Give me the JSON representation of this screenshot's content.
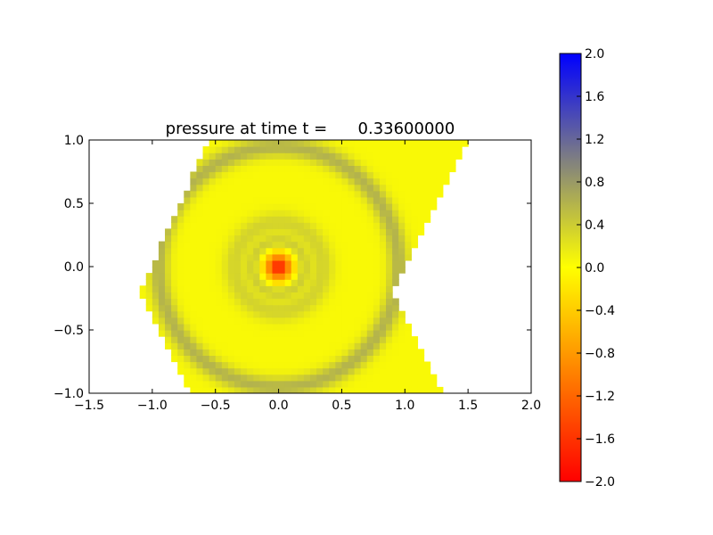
{
  "chart_data": {
    "type": "heatmap",
    "title": "pressure at time t =      0.33600000",
    "xlabel": "",
    "ylabel": "",
    "xlim": [
      -1.5,
      2.0
    ],
    "ylim": [
      -1.0,
      1.0
    ],
    "x_ticks": [
      "−1.5",
      "−1.0",
      "−0.5",
      "0.0",
      "0.5",
      "1.0",
      "1.5",
      "2.0"
    ],
    "y_ticks": [
      "−1.0",
      "−0.5",
      "0.0",
      "0.5",
      "1.0"
    ],
    "x_tick_values": [
      -1.5,
      -1.0,
      -0.5,
      0.0,
      0.5,
      1.0,
      1.5,
      2.0
    ],
    "y_tick_values": [
      -1.0,
      -0.5,
      0.0,
      0.5,
      1.0
    ],
    "grid": false,
    "domain_polygon": [
      [
        -1.1,
        -0.2
      ],
      [
        -0.55,
        1.0
      ],
      [
        1.5,
        1.0
      ],
      [
        0.9,
        -0.2
      ],
      [
        1.3,
        -1.0
      ],
      [
        -0.7,
        -1.0
      ]
    ],
    "field": {
      "description_values": "pressure field",
      "pulse_center": [
        0.0,
        0.0
      ],
      "pulse_min": -1.8,
      "ring_radius": 0.95,
      "ring_peak": 0.55,
      "background": 0.05
    },
    "colorbar": {
      "range": [
        -2.0,
        2.0
      ],
      "ticks": [
        "2.0",
        "1.6",
        "1.2",
        "0.8",
        "0.4",
        "0.0",
        "−0.4",
        "−0.8",
        "−1.2",
        "−1.6",
        "−2.0"
      ],
      "tick_values": [
        2.0,
        1.6,
        1.2,
        0.8,
        0.4,
        0.0,
        -0.4,
        -0.8,
        -1.2,
        -1.6,
        -2.0
      ],
      "colors": {
        "min": "#ff0000",
        "mid_low": "#ffff00",
        "mid_high": "#808080",
        "max": "#0000ff"
      }
    }
  }
}
